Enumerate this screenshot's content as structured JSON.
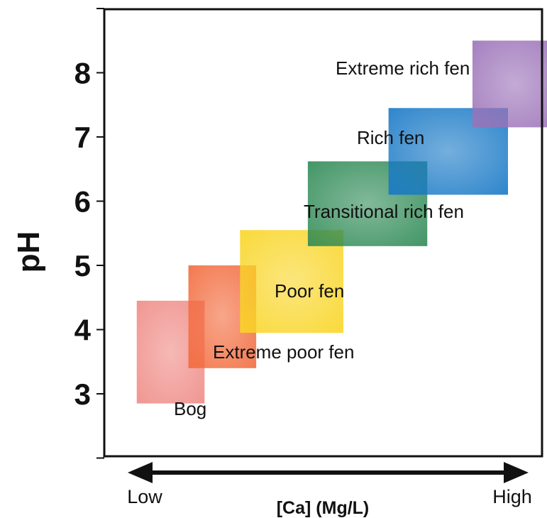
{
  "chart_data": {
    "type": "heatmap",
    "title": "",
    "xlabel": "[Ca] (Mg/L)",
    "ylabel": "pH",
    "x_axis": {
      "low_label": "Low",
      "high_label": "High",
      "range": [
        0,
        100
      ]
    },
    "ylim": [
      2,
      9
    ],
    "yticks": [
      3,
      4,
      5,
      6,
      7,
      8
    ],
    "grid": false,
    "legend": "none",
    "regions": [
      {
        "label": "Bog",
        "x": [
          5,
          26
        ],
        "y": [
          2.85,
          4.45
        ],
        "color": "#ef8a85"
      },
      {
        "label": "Extreme poor fen",
        "x": [
          21,
          42
        ],
        "y": [
          3.4,
          5.0
        ],
        "color": "#f26a3c"
      },
      {
        "label": "Poor fen",
        "x": [
          37,
          69
        ],
        "y": [
          3.95,
          5.55
        ],
        "color": "#f9d525"
      },
      {
        "label": "Transitional rich fen",
        "x": [
          58,
          95
        ],
        "y": [
          5.3,
          6.62
        ],
        "color": "#2e8a55"
      },
      {
        "label": "Rich fen",
        "x": [
          83,
          120
        ],
        "y": [
          6.1,
          7.45
        ],
        "color": "#1778c6"
      },
      {
        "label": "Extreme rich fen",
        "x": [
          109,
          135
        ],
        "y": [
          7.15,
          8.5
        ],
        "color": "#9b72b8"
      }
    ]
  }
}
